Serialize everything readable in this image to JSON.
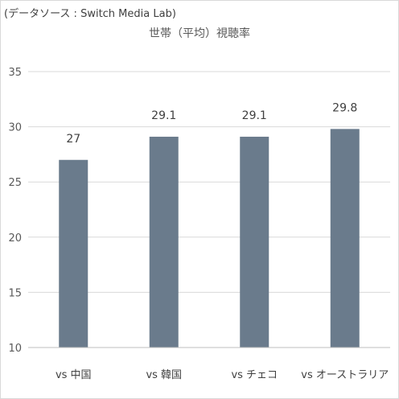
{
  "source_note": "(データソース : Switch Media Lab)",
  "chart_data": {
    "type": "bar",
    "title": "世帯（平均）視聴率",
    "categories": [
      "vs 中国",
      "vs 韓国",
      "vs チェコ",
      "vs オーストラリア"
    ],
    "values": [
      27,
      29.1,
      29.1,
      29.8
    ],
    "data_labels": [
      "27",
      "29.1",
      "29.1",
      "29.8"
    ],
    "yticks": [
      "10",
      "15",
      "20",
      "25",
      "30",
      "35"
    ],
    "ylim": [
      10,
      35
    ],
    "grid": true,
    "legend": "none",
    "bar_color": "#6a7b8c",
    "grid_color": "#d9d9d9"
  }
}
